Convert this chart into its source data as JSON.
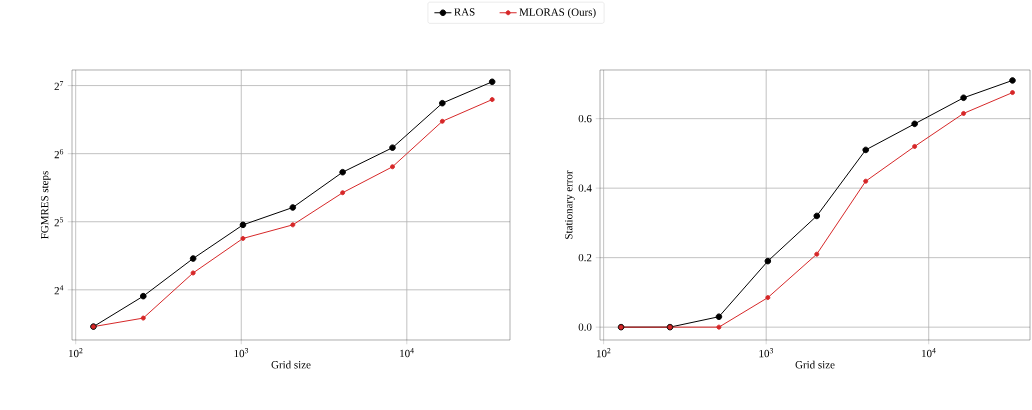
{
  "chart_data": [
    {
      "type": "line",
      "xlabel": "Grid size",
      "ylabel": "FGMRES steps",
      "log": "xy",
      "grid": true,
      "legend": "top",
      "marker": "circle",
      "line_style": "solid",
      "x": [
        128,
        256,
        512,
        1024,
        2048,
        4096,
        8192,
        16384,
        32768
      ],
      "xlim": [
        95,
        42000
      ],
      "xticks": [
        {
          "value": 100,
          "label": "10$^{2}$"
        },
        {
          "value": 1000,
          "label": "10$^{3}$"
        },
        {
          "value": 10000,
          "label": "10$^{4}$"
        }
      ],
      "ylim": [
        9.6,
        150
      ],
      "yticks": [
        {
          "value": 16,
          "label": "2$^{4}$"
        },
        {
          "value": 32,
          "label": "2$^{5}$"
        },
        {
          "value": 64,
          "label": "2$^{6}$"
        },
        {
          "value": 128,
          "label": "2$^{7}$"
        }
      ],
      "series": [
        {
          "name": "RAS",
          "color": "#000000",
          "values": [
            11,
            15,
            22,
            31,
            37,
            53,
            68,
            107,
            133
          ]
        },
        {
          "name": "MLORAS (Ours)",
          "color": "#d62728",
          "values": [
            11,
            12,
            19,
            27,
            31,
            43,
            56,
            89,
            111
          ]
        }
      ]
    },
    {
      "type": "line",
      "xlabel": "Grid size",
      "ylabel": "Stationary error",
      "log": "x",
      "grid": true,
      "marker": "circle",
      "line_style": "solid",
      "x": [
        128,
        256,
        512,
        1024,
        2048,
        4096,
        8192,
        16384,
        32768
      ],
      "xlim": [
        95,
        42000
      ],
      "xticks": [
        {
          "value": 100,
          "label": "10$^{2}$"
        },
        {
          "value": 1000,
          "label": "10$^{3}$"
        },
        {
          "value": 10000,
          "label": "10$^{4}$"
        }
      ],
      "ylim": [
        -0.037,
        0.74
      ],
      "yticks": [
        {
          "value": 0,
          "label": "0.0"
        },
        {
          "value": 0.2,
          "label": "0.2"
        },
        {
          "value": 0.4,
          "label": "0.4"
        },
        {
          "value": 0.6,
          "label": "0.6"
        }
      ],
      "series": [
        {
          "color": "#000000",
          "values": [
            0,
            0,
            0.03,
            0.19,
            0.32,
            0.51,
            0.585,
            0.66,
            0.71
          ]
        },
        {
          "color": "#d62728",
          "values": [
            0,
            0,
            0,
            0.085,
            0.21,
            0.42,
            0.52,
            0.615,
            0.675
          ]
        }
      ]
    }
  ]
}
